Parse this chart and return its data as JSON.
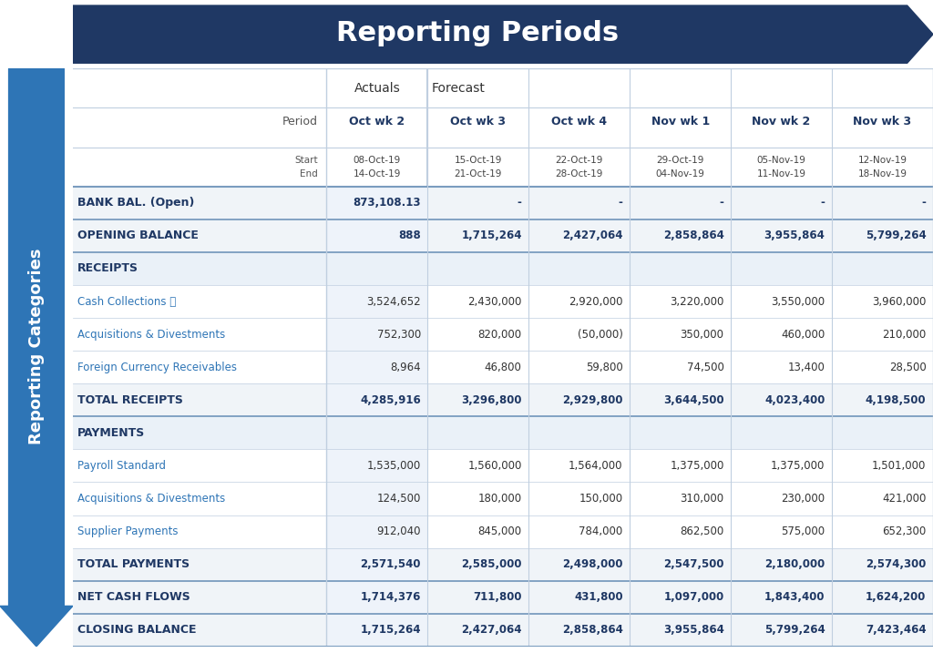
{
  "title": "Reporting Periods",
  "side_label": "Reporting Categories",
  "top_arrow_color": "#1f3864",
  "side_arrow_color": "#2e75b6",
  "actuals_label": "Actuals",
  "forecast_label": "Forecast",
  "columns": [
    "Oct wk 2",
    "Oct wk 3",
    "Oct wk 4",
    "Nov wk 1",
    "Nov wk 2",
    "Nov wk 3"
  ],
  "col_starts": [
    "08-Oct-19",
    "15-Oct-19",
    "22-Oct-19",
    "29-Oct-19",
    "05-Nov-19",
    "12-Nov-19"
  ],
  "col_ends": [
    "14-Oct-19",
    "21-Oct-19",
    "28-Oct-19",
    "04-Nov-19",
    "11-Nov-19",
    "18-Nov-19"
  ],
  "rows": [
    {
      "label": "BANK BAL. (Open)",
      "bold": true,
      "section_header": false,
      "values": [
        "873,108.13",
        "-",
        "-",
        "-",
        "-",
        "-"
      ]
    },
    {
      "label": "OPENING BALANCE",
      "bold": true,
      "section_header": false,
      "values": [
        "888",
        "1,715,264",
        "2,427,064",
        "2,858,864",
        "3,955,864",
        "5,799,264"
      ]
    },
    {
      "label": "RECEIPTS",
      "bold": true,
      "section_header": true,
      "values": [
        "",
        "",
        "",
        "",
        "",
        ""
      ]
    },
    {
      "label": "Cash Collections Ⓕ",
      "bold": false,
      "section_header": false,
      "values": [
        "3,524,652",
        "2,430,000",
        "2,920,000",
        "3,220,000",
        "3,550,000",
        "3,960,000"
      ]
    },
    {
      "label": "Acquisitions & Divestments",
      "bold": false,
      "section_header": false,
      "values": [
        "752,300",
        "820,000",
        "(50,000)",
        "350,000",
        "460,000",
        "210,000"
      ]
    },
    {
      "label": "Foreign Currency Receivables",
      "bold": false,
      "section_header": false,
      "values": [
        "8,964",
        "46,800",
        "59,800",
        "74,500",
        "13,400",
        "28,500"
      ]
    },
    {
      "label": "TOTAL RECEIPTS",
      "bold": true,
      "section_header": false,
      "values": [
        "4,285,916",
        "3,296,800",
        "2,929,800",
        "3,644,500",
        "4,023,400",
        "4,198,500"
      ]
    },
    {
      "label": "PAYMENTS",
      "bold": true,
      "section_header": true,
      "values": [
        "",
        "",
        "",
        "",
        "",
        ""
      ]
    },
    {
      "label": "Payroll Standard",
      "bold": false,
      "section_header": false,
      "values": [
        "1,535,000",
        "1,560,000",
        "1,564,000",
        "1,375,000",
        "1,375,000",
        "1,501,000"
      ]
    },
    {
      "label": "Acquisitions & Divestments",
      "bold": false,
      "section_header": false,
      "values": [
        "124,500",
        "180,000",
        "150,000",
        "310,000",
        "230,000",
        "421,000"
      ]
    },
    {
      "label": "Supplier Payments",
      "bold": false,
      "section_header": false,
      "values": [
        "912,040",
        "845,000",
        "784,000",
        "862,500",
        "575,000",
        "652,300"
      ]
    },
    {
      "label": "TOTAL PAYMENTS",
      "bold": true,
      "section_header": false,
      "values": [
        "2,571,540",
        "2,585,000",
        "2,498,000",
        "2,547,500",
        "2,180,000",
        "2,574,300"
      ]
    },
    {
      "label": "NET CASH FLOWS",
      "bold": true,
      "section_header": false,
      "values": [
        "1,714,376",
        "711,800",
        "431,800",
        "1,097,000",
        "1,843,400",
        "1,624,200"
      ]
    },
    {
      "label": "CLOSING BALANCE",
      "bold": true,
      "section_header": false,
      "values": [
        "1,715,264",
        "2,427,064",
        "2,858,864",
        "3,955,864",
        "5,799,264",
        "7,423,464"
      ]
    }
  ],
  "bold_row_bg": "#f0f4f8",
  "normal_row_bg": "#ffffff",
  "bold_text_color": "#1f3864",
  "normal_text_color": "#2e75b6",
  "border_color": "#c0cfe0",
  "section_header_bg": "#eaf1f8",
  "actuals_col_bg": "#eef3fa"
}
